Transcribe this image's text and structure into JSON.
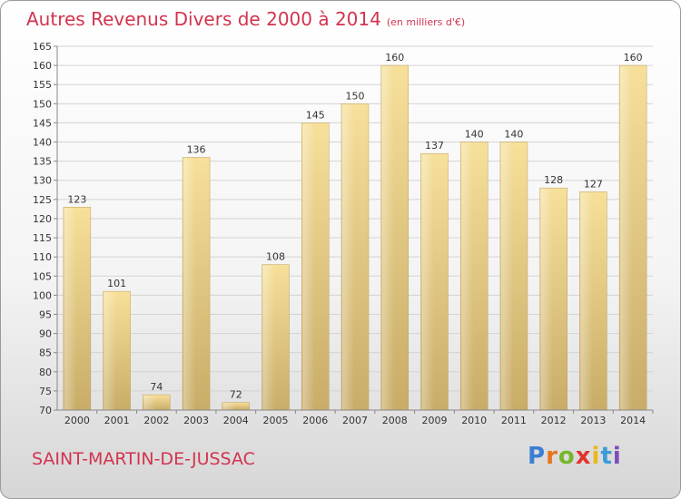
{
  "chart_data": {
    "type": "bar",
    "title": "Autres Revenus Divers de 2000 à 2014",
    "unit_note": "(en milliers d'€)",
    "categories": [
      "2000",
      "2001",
      "2002",
      "2003",
      "2004",
      "2005",
      "2006",
      "2007",
      "2008",
      "2009",
      "2010",
      "2011",
      "2012",
      "2013",
      "2014"
    ],
    "values": [
      123,
      101,
      74,
      136,
      72,
      108,
      145,
      150,
      160,
      137,
      140,
      140,
      128,
      127,
      160
    ],
    "ylim": [
      70,
      165
    ],
    "yticks": [
      70,
      75,
      80,
      85,
      90,
      95,
      100,
      105,
      110,
      115,
      120,
      125,
      130,
      135,
      140,
      145,
      150,
      155,
      160,
      165
    ],
    "grid": true,
    "bar_color_light": "#f7e09a",
    "bar_color_dark": "#c8ac68"
  },
  "commune": "SAINT-MARTIN-DE-JUSSAC",
  "logo_letters": [
    "P",
    "r",
    "o",
    "x",
    "i",
    "t",
    "i"
  ],
  "accent_color": "#d2344e"
}
